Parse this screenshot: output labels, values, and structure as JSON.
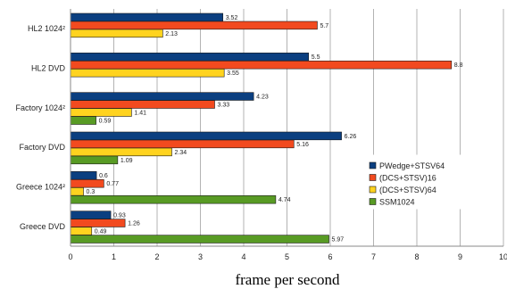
{
  "chart_data": {
    "type": "bar",
    "orientation": "horizontal",
    "categories": [
      "HL2 1024²",
      "HL2 DVD",
      "Factory 1024²",
      "Factory DVD",
      "Greece 1024²",
      "Greece DVD"
    ],
    "series": [
      {
        "name": "PWedge+STSV64",
        "color": "#0b3f80",
        "values": [
          3.52,
          5.5,
          4.23,
          6.26,
          0.6,
          0.93
        ]
      },
      {
        "name": "(DCS+STSV)16",
        "color": "#f24a1f",
        "values": [
          5.7,
          8.8,
          3.33,
          5.16,
          0.77,
          1.26
        ]
      },
      {
        "name": "(DCS+STSV)64",
        "color": "#ffd31f",
        "values": [
          2.13,
          3.55,
          1.41,
          2.34,
          0.3,
          0.49
        ]
      },
      {
        "name": "SSM1024",
        "color": "#589b24",
        "values": [
          null,
          null,
          0.59,
          1.09,
          4.74,
          5.97
        ]
      }
    ],
    "data_labels": [
      [
        "3.52",
        "5.7",
        "2.13",
        ""
      ],
      [
        "5.5",
        "8.8",
        "3.55",
        ""
      ],
      [
        "4.23",
        "3.33",
        "1.41",
        "0.59"
      ],
      [
        "6.26",
        "5.16",
        "2.34",
        "1.09"
      ],
      [
        "0.6",
        "0.77",
        "0.3",
        "4.74"
      ],
      [
        "0.93",
        "1.26",
        "0.49",
        "5.97"
      ]
    ],
    "x_ticks": [
      "0",
      "1",
      "2",
      "3",
      "4",
      "5",
      "6",
      "7",
      "8",
      "9",
      "10"
    ],
    "xlim": [
      0,
      10
    ],
    "xlabel": "frame per second",
    "title": "",
    "ylabel": "",
    "grid": "vertical",
    "legend_position": "right"
  }
}
